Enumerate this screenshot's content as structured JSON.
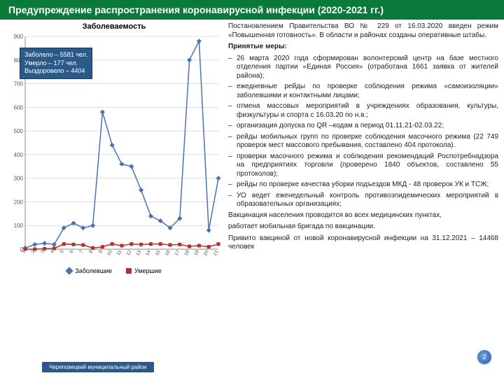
{
  "header": {
    "title": "Предупреждение распространения коронавирусной инфекции (2020-2021 гг.)"
  },
  "footer": {
    "label": "Череповецкий муниципальный район",
    "page": "2"
  },
  "chart": {
    "title": "Заболеваемость",
    "type": "line+markers",
    "background_color": "#ffffff",
    "grid_color": "#c8c8c8",
    "ylim": [
      0,
      900
    ],
    "ytick_step": 100,
    "x_labels": [
      "1",
      "2",
      "3",
      "4",
      "5",
      "6",
      "7",
      "8",
      "9",
      "10",
      "11",
      "12",
      "13",
      "14",
      "15",
      "16",
      "17",
      "18",
      "19",
      "20",
      "21"
    ],
    "series": [
      {
        "name": "Заболевшие",
        "color": "#4a72b0",
        "marker": "diamond",
        "values": [
          5,
          20,
          25,
          20,
          90,
          110,
          90,
          100,
          580,
          440,
          360,
          350,
          250,
          140,
          120,
          90,
          130,
          800,
          880,
          80,
          300
        ]
      },
      {
        "name": "Умершие",
        "color": "#b03030",
        "marker": "square",
        "values": [
          0,
          0,
          2,
          3,
          22,
          20,
          18,
          5,
          10,
          22,
          15,
          22,
          20,
          22,
          22,
          18,
          20,
          12,
          15,
          10,
          22
        ]
      }
    ],
    "legend": [
      "Заболевшие",
      "Умершие"
    ]
  },
  "overlay": {
    "line1": "Заболело – 5581 чел.",
    "line2": "Умерло – 177 чел.",
    "line3": "Выздоровело – 4404"
  },
  "text": {
    "intro": "Постановлением Правительства ВО № 229 от 16.03.2020 введен режим «Повышенная готовность». В области и районах созданы оперативные штабы.",
    "measures_title": "Принятые меры:",
    "measures": [
      "26 марта 2020 года сформирован волонтерский центр на базе местного отделения партии «Единая Россия» (отработана 1661 заявка от жителей района);",
      "ежедневные рейды по проверке соблюдения режима «самоизоляции» заболевшими и контактными лицами;",
      "отмена массовых мероприятий в учреждениях образования, культуры, физкультуры и спорта с 16.03.20 по н.в.;",
      "организация допуска по QR –кодам а период 01.11.21-02.03.22;",
      "рейды мобильных групп по проверке соблюдения масочного режима (22 749 проверок мест массового пребывания, составлено 404 протокола).",
      "проверки масочного режима и соблюдения рекомендаций Роспотребнадзора на предприятиях торговли (проверено 1840 объектов, составлено 55 протоколов);",
      "рейды по проверке качества уборки подъездов МКД - 48 проверок УК и ТСЖ;",
      "УО ведет еженедельный контроль противоэпидемических мероприятий в образовательных организациях;"
    ],
    "vacc1": "Вакцинация населения проводится во всех медицинских пунктах,",
    "vacc2": "работает мобильная бригада по вакцинации.",
    "vacc3": "Привито вакциной от новой коронавирусной инфекции на 31.12.2021 – 14468 человек"
  }
}
